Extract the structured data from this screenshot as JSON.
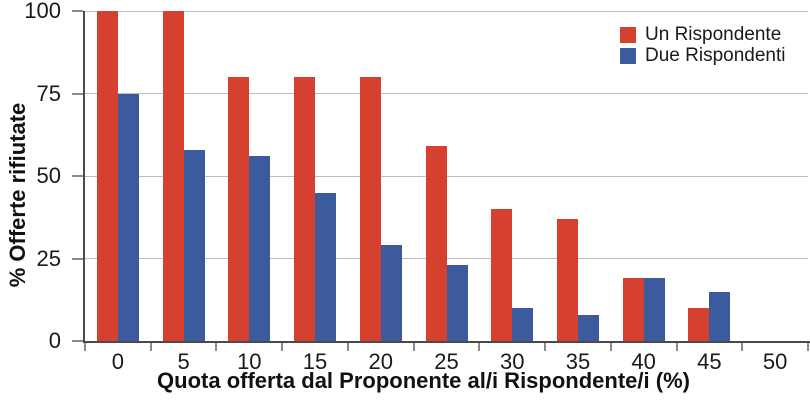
{
  "chart_data": {
    "type": "bar",
    "title": "",
    "categories": [
      "0",
      "5",
      "10",
      "15",
      "20",
      "25",
      "30",
      "35",
      "40",
      "45",
      "50"
    ],
    "series": [
      {
        "name": "Un Rispondente",
        "color": "#d6402f",
        "values": [
          100,
          100,
          80,
          80,
          80,
          59,
          40,
          37,
          19,
          10,
          0
        ]
      },
      {
        "name": "Due Rispondenti",
        "color": "#3c5b9e",
        "values": [
          75,
          58,
          56,
          45,
          29,
          23,
          10,
          8,
          19,
          15,
          0
        ]
      }
    ],
    "xlabel": "Quota offerta dal Proponente al/i Rispondente/i (%)",
    "ylabel": "% Offerte rifiutate",
    "ylim": [
      0,
      100
    ],
    "yticks": [
      0,
      25,
      50,
      75,
      100
    ],
    "grid": true,
    "legend_position": "top-right",
    "colors": {
      "gridline": "#bdbdbd",
      "axis": "#4a4a4a",
      "text": "#1a1a1a"
    }
  }
}
